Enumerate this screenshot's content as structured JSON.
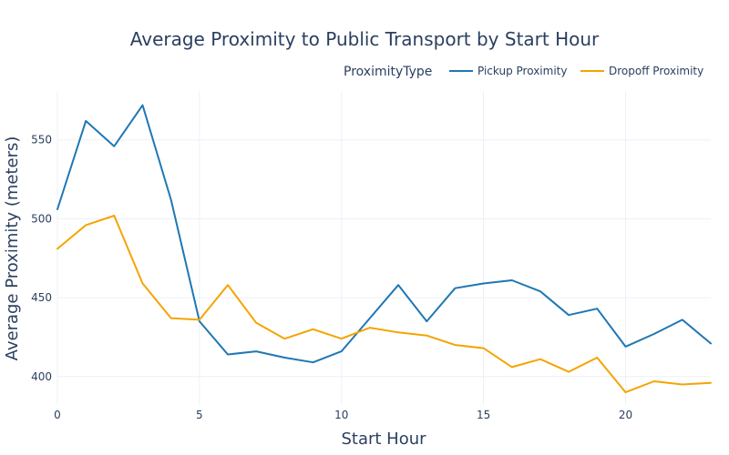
{
  "chart_data": {
    "type": "line",
    "title": "Average Proximity to Public Transport by Start Hour",
    "xlabel": "Start Hour",
    "ylabel": "Average Proximity (meters)",
    "xlim": [
      0,
      23
    ],
    "ylim": [
      382,
      581
    ],
    "xticks": [
      0,
      5,
      10,
      15,
      20
    ],
    "yticks": [
      400,
      450,
      500,
      550
    ],
    "grid": true,
    "legend": {
      "title": "ProximityType",
      "placement": "top-right",
      "orientation": "horizontal"
    },
    "x": [
      0,
      1,
      2,
      3,
      4,
      5,
      6,
      7,
      8,
      9,
      10,
      11,
      12,
      13,
      14,
      15,
      16,
      17,
      18,
      19,
      20,
      21,
      22,
      23
    ],
    "series": [
      {
        "name": "Pickup Proximity",
        "color": "#1f77b4",
        "values": [
          506,
          562,
          546,
          572,
          512,
          435,
          414,
          416,
          412,
          409,
          416,
          437,
          458,
          435,
          456,
          459,
          461,
          454,
          439,
          443,
          419,
          427,
          436,
          421
        ]
      },
      {
        "name": "Dropoff Proximity",
        "color": "#f4a400",
        "values": [
          481,
          496,
          502,
          459,
          437,
          436,
          458,
          434,
          424,
          430,
          424,
          431,
          428,
          426,
          420,
          418,
          406,
          411,
          403,
          412,
          390,
          397,
          395,
          396
        ]
      }
    ]
  }
}
